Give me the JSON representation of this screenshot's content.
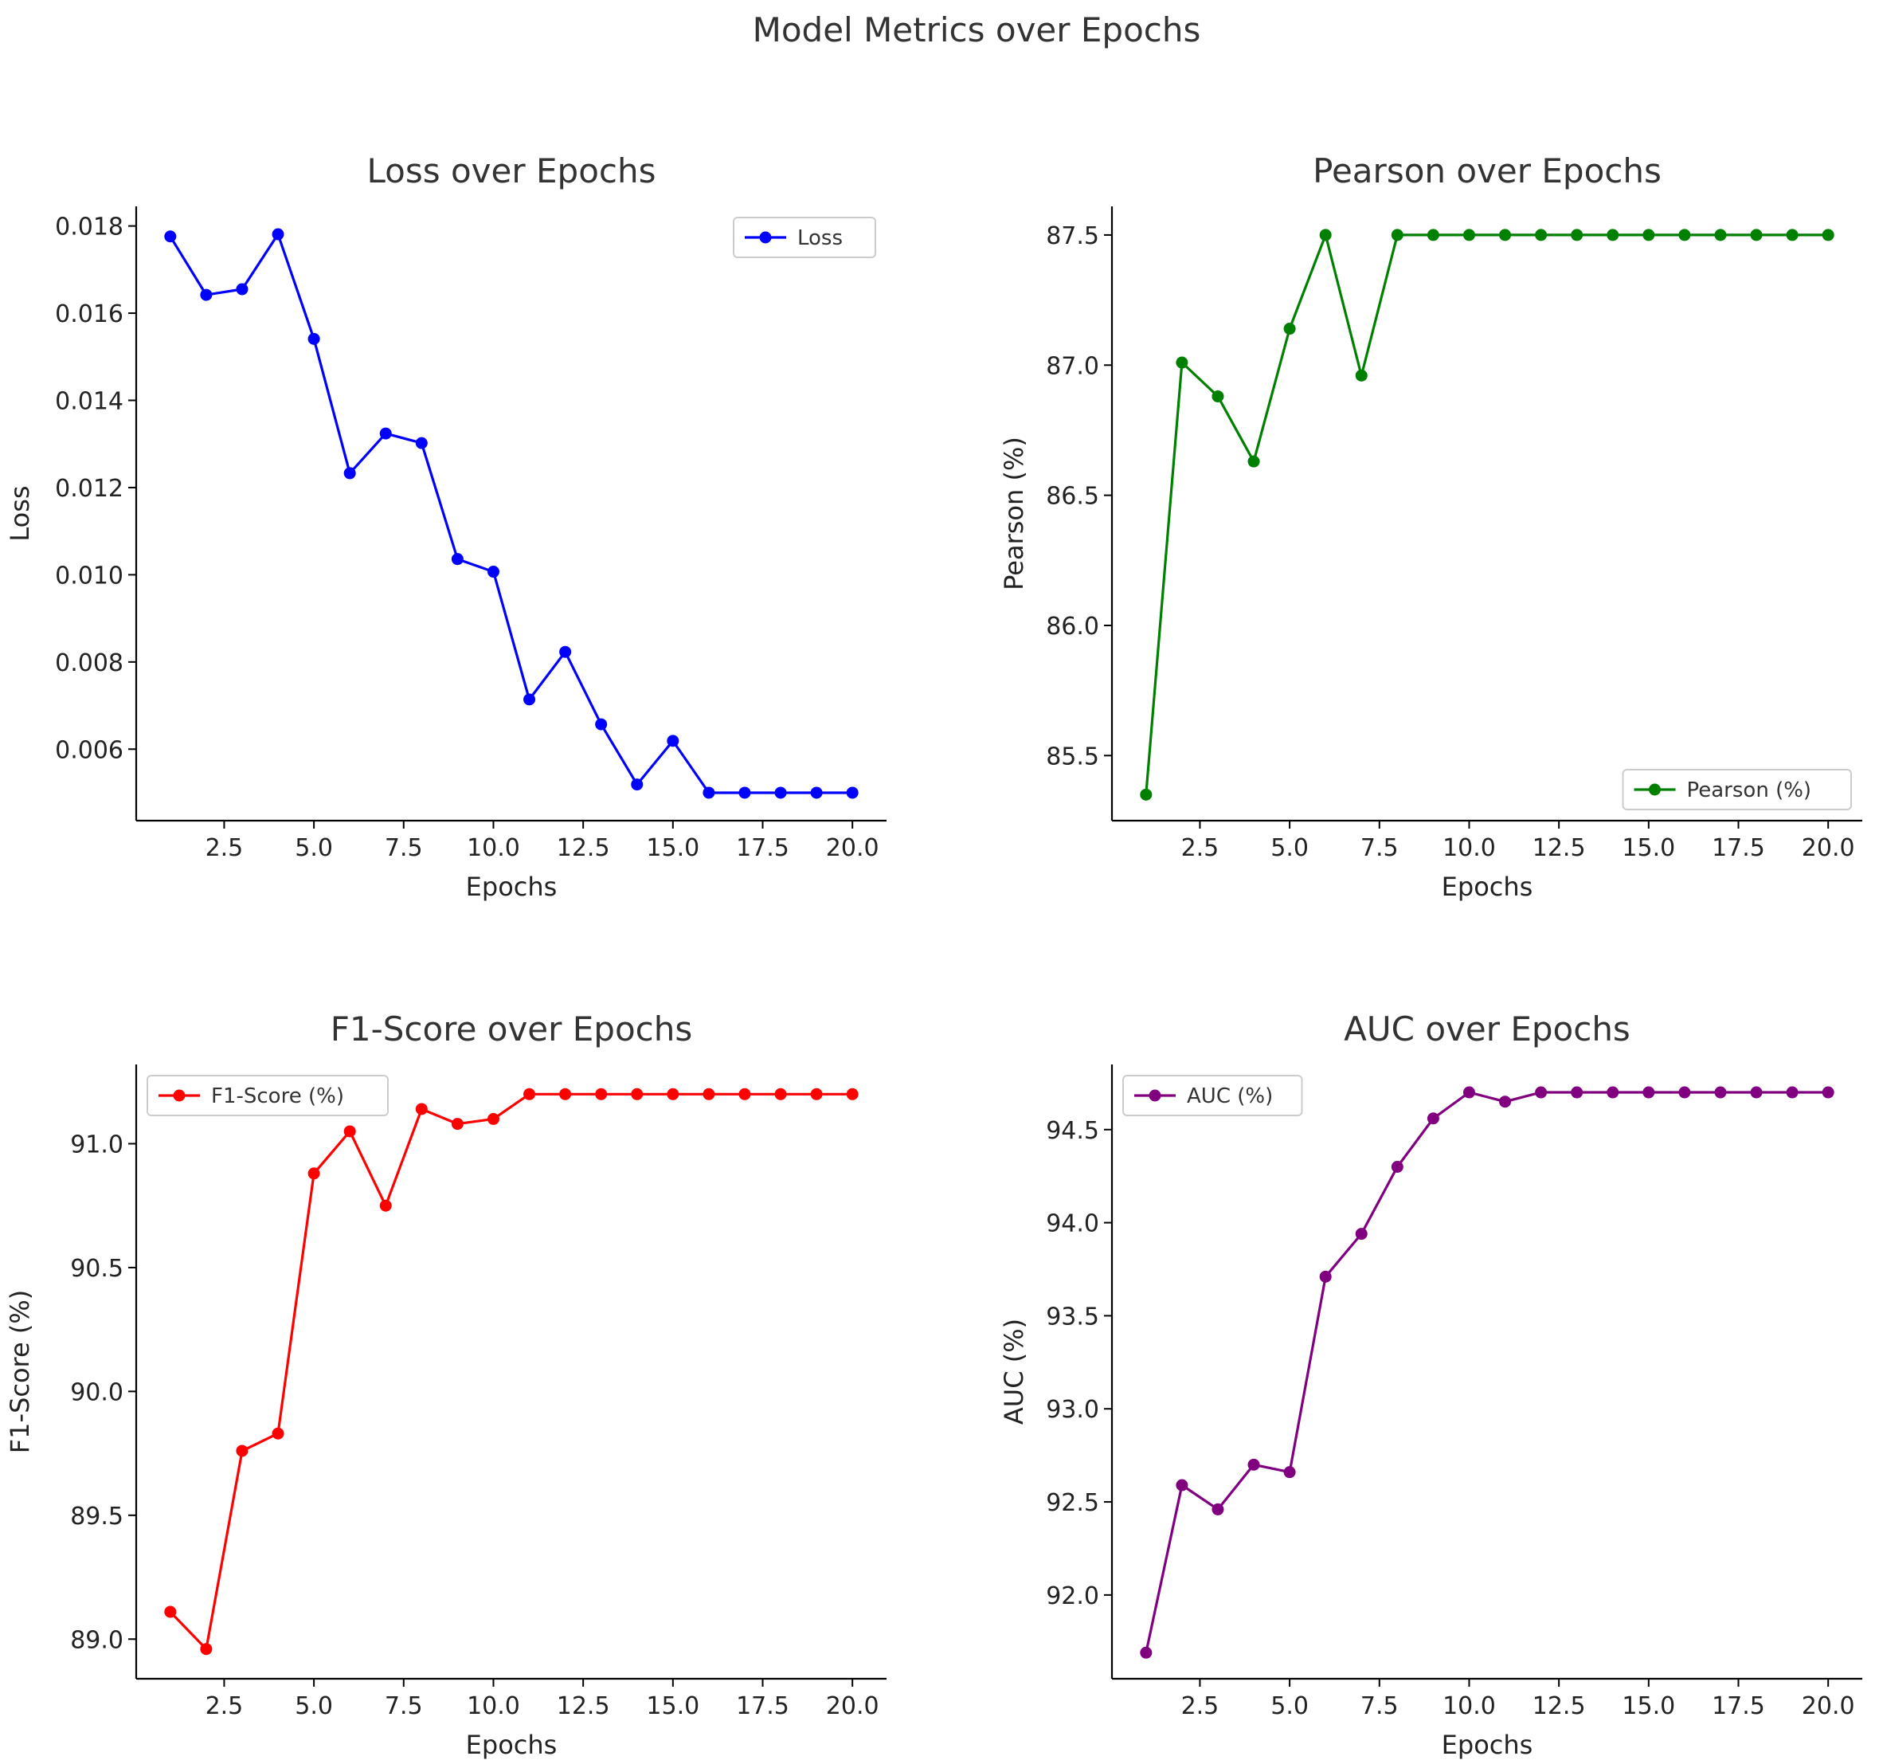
{
  "figure": {
    "title": "Model Metrics over Epochs"
  },
  "chart_data": [
    {
      "type": "line",
      "title": "Loss over Epochs",
      "xlabel": "Epochs",
      "ylabel": "Loss",
      "x": [
        1,
        2,
        3,
        4,
        5,
        6,
        7,
        8,
        9,
        10,
        11,
        12,
        13,
        14,
        15,
        16,
        17,
        18,
        19,
        20
      ],
      "series": [
        {
          "name": "Loss",
          "color": "#0000ff",
          "values": [
            0.01776,
            0.01642,
            0.01655,
            0.01781,
            0.01541,
            0.01233,
            0.01324,
            0.01302,
            0.01036,
            0.01007,
            0.00714,
            0.00823,
            0.00657,
            0.00519,
            0.00619,
            0.005,
            0.005,
            0.005,
            0.005,
            0.005
          ]
        }
      ],
      "xlim": [
        0.05,
        20.95
      ],
      "ylim": [
        0.00436,
        0.01845
      ],
      "xticks": [
        2.5,
        5.0,
        7.5,
        10.0,
        12.5,
        15.0,
        17.5,
        20.0
      ],
      "xtick_labels": [
        "2.5",
        "5.0",
        "7.5",
        "10.0",
        "12.5",
        "15.0",
        "17.5",
        "20.0"
      ],
      "yticks": [
        0.006,
        0.008,
        0.01,
        0.012,
        0.014,
        0.016,
        0.018
      ],
      "ytick_labels": [
        "0.006",
        "0.008",
        "0.010",
        "0.012",
        "0.014",
        "0.016",
        "0.018"
      ],
      "legend": "top-right",
      "grid": false
    },
    {
      "type": "line",
      "title": "Pearson over Epochs",
      "xlabel": "Epochs",
      "ylabel": "Pearson (%)",
      "x": [
        1,
        2,
        3,
        4,
        5,
        6,
        7,
        8,
        9,
        10,
        11,
        12,
        13,
        14,
        15,
        16,
        17,
        18,
        19,
        20
      ],
      "series": [
        {
          "name": "Pearson (%)",
          "color": "#008000",
          "values": [
            85.35,
            87.01,
            86.88,
            86.63,
            87.14,
            87.5,
            86.96,
            87.5,
            87.5,
            87.5,
            87.5,
            87.5,
            87.5,
            87.5,
            87.5,
            87.5,
            87.5,
            87.5,
            87.5,
            87.5
          ]
        }
      ],
      "xlim": [
        0.05,
        20.95
      ],
      "ylim": [
        85.25,
        87.61
      ],
      "xticks": [
        2.5,
        5.0,
        7.5,
        10.0,
        12.5,
        15.0,
        17.5,
        20.0
      ],
      "xtick_labels": [
        "2.5",
        "5.0",
        "7.5",
        "10.0",
        "12.5",
        "15.0",
        "17.5",
        "20.0"
      ],
      "yticks": [
        85.5,
        86.0,
        86.5,
        87.0,
        87.5
      ],
      "ytick_labels": [
        "85.5",
        "86.0",
        "86.5",
        "87.0",
        "87.5"
      ],
      "legend": "bottom-right",
      "grid": false
    },
    {
      "type": "line",
      "title": "F1-Score over Epochs",
      "xlabel": "Epochs",
      "ylabel": "F1-Score (%)",
      "x": [
        1,
        2,
        3,
        4,
        5,
        6,
        7,
        8,
        9,
        10,
        11,
        12,
        13,
        14,
        15,
        16,
        17,
        18,
        19,
        20
      ],
      "series": [
        {
          "name": "F1-Score (%)",
          "color": "#ff0000",
          "values": [
            89.11,
            88.96,
            89.76,
            89.83,
            90.88,
            91.05,
            90.75,
            91.14,
            91.08,
            91.1,
            91.2,
            91.2,
            91.2,
            91.2,
            91.2,
            91.2,
            91.2,
            91.2,
            91.2,
            91.2
          ]
        }
      ],
      "xlim": [
        0.05,
        20.95
      ],
      "ylim": [
        88.84,
        91.32
      ],
      "xticks": [
        2.5,
        5.0,
        7.5,
        10.0,
        12.5,
        15.0,
        17.5,
        20.0
      ],
      "xtick_labels": [
        "2.5",
        "5.0",
        "7.5",
        "10.0",
        "12.5",
        "15.0",
        "17.5",
        "20.0"
      ],
      "yticks": [
        89.0,
        89.5,
        90.0,
        90.5,
        91.0
      ],
      "ytick_labels": [
        "89.0",
        "89.5",
        "90.0",
        "90.5",
        "91.0"
      ],
      "legend": "top-left",
      "grid": false
    },
    {
      "type": "line",
      "title": "AUC over Epochs",
      "xlabel": "Epochs",
      "ylabel": "AUC (%)",
      "x": [
        1,
        2,
        3,
        4,
        5,
        6,
        7,
        8,
        9,
        10,
        11,
        12,
        13,
        14,
        15,
        16,
        17,
        18,
        19,
        20
      ],
      "series": [
        {
          "name": "AUC (%)",
          "color": "#800080",
          "values": [
            91.69,
            92.59,
            92.46,
            92.7,
            92.66,
            93.71,
            93.94,
            94.3,
            94.56,
            94.7,
            94.65,
            94.7,
            94.7,
            94.7,
            94.7,
            94.7,
            94.7,
            94.7,
            94.7,
            94.7
          ]
        }
      ],
      "xlim": [
        0.05,
        20.95
      ],
      "ylim": [
        91.55,
        94.85
      ],
      "xticks": [
        2.5,
        5.0,
        7.5,
        10.0,
        12.5,
        15.0,
        17.5,
        20.0
      ],
      "xtick_labels": [
        "2.5",
        "5.0",
        "7.5",
        "10.0",
        "12.5",
        "15.0",
        "17.5",
        "20.0"
      ],
      "yticks": [
        92.0,
        92.5,
        93.0,
        93.5,
        94.0,
        94.5
      ],
      "ytick_labels": [
        "92.0",
        "92.5",
        "93.0",
        "93.5",
        "94.0",
        "94.5"
      ],
      "legend": "top-left",
      "grid": false
    }
  ]
}
